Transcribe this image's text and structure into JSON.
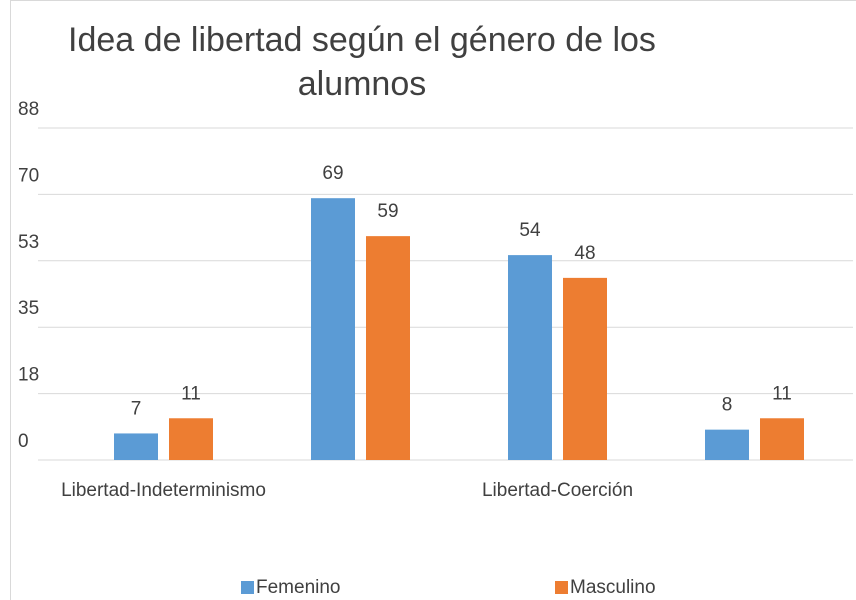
{
  "chart_data": {
    "type": "bar",
    "title": "Idea de libertad según el género de los alumnos",
    "categories": [
      "Libertad-Indeterminismo",
      null,
      "Libertad-Coerción",
      null
    ],
    "series": [
      {
        "name": "Femenino",
        "color": "#5b9bd5",
        "values": [
          7,
          69,
          54,
          8
        ]
      },
      {
        "name": "Masculino",
        "color": "#ed7d31",
        "values": [
          11,
          59,
          48,
          11
        ]
      }
    ],
    "ylim": [
      0,
      87.5
    ],
    "yticks": [
      0,
      {
        "value": 17.5,
        "label": "18"
      },
      35,
      {
        "value": 52.5,
        "label": "53"
      },
      70,
      {
        "value": 87.5,
        "label": "88"
      }
    ],
    "grid": true,
    "legend": "bottom"
  }
}
